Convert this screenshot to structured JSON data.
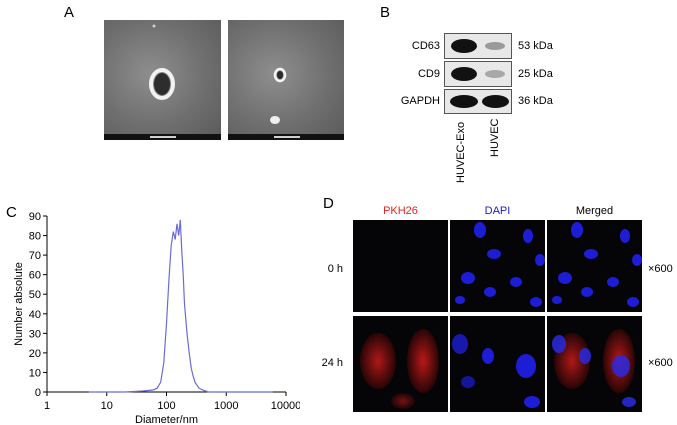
{
  "panels": {
    "a": {
      "letter": "A"
    },
    "b": {
      "letter": "B",
      "rows": [
        {
          "label": "CD63",
          "kda": "53 kDa"
        },
        {
          "label": "CD9",
          "kda": "25 kDa"
        },
        {
          "label": "GAPDH",
          "kda": "36 kDa"
        }
      ],
      "lanes": [
        "HUVEC-Exo",
        "HUVEC"
      ]
    },
    "c": {
      "letter": "C"
    },
    "d": {
      "letter": "D",
      "columns": [
        "PKH26",
        "DAPI",
        "Merged"
      ],
      "column_colors": [
        "#e8201c",
        "#1c1ccc",
        "#000000"
      ],
      "rows": [
        "0 h",
        "24 h"
      ],
      "magnification": "×600"
    }
  },
  "chart_data": {
    "type": "line",
    "xlabel": "Diameter/nm",
    "ylabel": "Number absolute",
    "xscale": "log",
    "xlim": [
      1,
      10000
    ],
    "ylim": [
      0,
      90
    ],
    "xticks": [
      1,
      10,
      100,
      1000,
      10000
    ],
    "xtick_labels": [
      "1",
      "10",
      "100",
      "1000",
      "10000"
    ],
    "yticks": [
      0,
      10,
      20,
      30,
      40,
      50,
      60,
      70,
      80,
      90
    ],
    "grid": false,
    "line_color": "#6b6bd6",
    "series": [
      {
        "x": [
          5,
          20,
          40,
          60,
          70,
          80,
          90,
          100,
          110,
          120,
          130,
          140,
          150,
          160,
          170,
          180,
          190,
          200,
          220,
          240,
          260,
          280,
          300,
          350,
          400,
          500,
          1000,
          3000,
          6000
        ],
        "y": [
          0,
          0,
          0.5,
          1,
          2,
          5,
          15,
          35,
          58,
          75,
          82,
          78,
          86,
          80,
          88,
          72,
          60,
          45,
          30,
          20,
          12,
          8,
          5,
          2,
          1,
          0,
          0,
          0,
          0
        ]
      }
    ]
  }
}
